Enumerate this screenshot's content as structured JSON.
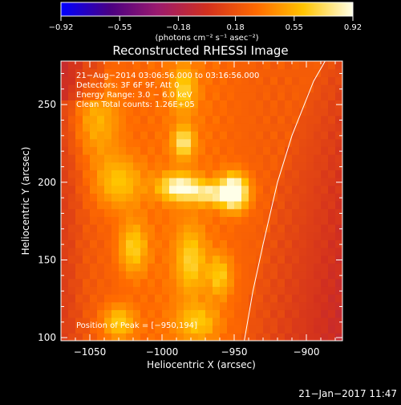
{
  "chart_data": {
    "type": "heatmap",
    "title": "Reconstructed RHESSI Image",
    "xlabel": "Heliocentric X (arcsec)",
    "ylabel": "Heliocentric Y (arcsec)",
    "xlim": [
      -1070,
      -875
    ],
    "ylim": [
      98,
      278
    ],
    "xticks": [
      -1050,
      -1000,
      -950,
      -900
    ],
    "xtick_labels": [
      "−1050",
      "−1000",
      "−950",
      "−900"
    ],
    "yticks": [
      100,
      150,
      200,
      250
    ],
    "ytick_labels": [
      "100",
      "150",
      "200",
      "250"
    ],
    "colorbar": {
      "min": -0.92,
      "max": 0.92,
      "ticks": [
        -0.92,
        -0.55,
        -0.18,
        0.18,
        0.55,
        0.92
      ],
      "tick_labels": [
        "−0.92",
        "−0.55",
        "−0.18",
        "0.18",
        "0.55",
        "0.92"
      ],
      "unit_label": "(photons cm⁻² s⁻¹ asec⁻²)"
    },
    "colormap": [
      "#0000ff",
      "#4b0082",
      "#9a1a6e",
      "#d2301e",
      "#ff6a00",
      "#ffc400",
      "#ffffe8"
    ],
    "info_lines": [
      "21−Aug−2014 03:06:56.000 to 03:16:56.000",
      "Detectors: 3F 6F 9F, Att 0",
      "Energy Range: 3.0 − 6.0 keV",
      "Clean     Total counts: 1.26E+05"
    ],
    "peak_label": "Position of Peak = [−950,194]",
    "peak": [
      -950,
      194
    ],
    "sources": [
      {
        "x": -950,
        "y": 194,
        "amp": 0.95,
        "sx": 7,
        "sy": 8
      },
      {
        "x": -988,
        "y": 197,
        "amp": 0.7,
        "sx": 10,
        "sy": 6
      },
      {
        "x": -967,
        "y": 193,
        "amp": 0.5,
        "sx": 9,
        "sy": 5
      },
      {
        "x": -985,
        "y": 226,
        "amp": 0.55,
        "sx": 5,
        "sy": 7
      },
      {
        "x": -985,
        "y": 260,
        "amp": 0.4,
        "sx": 6,
        "sy": 10
      },
      {
        "x": -1020,
        "y": 158,
        "amp": 0.45,
        "sx": 7,
        "sy": 12
      },
      {
        "x": -1030,
        "y": 110,
        "amp": 0.45,
        "sx": 8,
        "sy": 8
      },
      {
        "x": -980,
        "y": 150,
        "amp": 0.4,
        "sx": 7,
        "sy": 15
      },
      {
        "x": -960,
        "y": 140,
        "amp": 0.4,
        "sx": 6,
        "sy": 10
      },
      {
        "x": -975,
        "y": 110,
        "amp": 0.35,
        "sx": 10,
        "sy": 8
      },
      {
        "x": -1045,
        "y": 240,
        "amp": 0.35,
        "sx": 12,
        "sy": 18
      },
      {
        "x": -1030,
        "y": 200,
        "amp": 0.4,
        "sx": 12,
        "sy": 12
      }
    ],
    "limb": [
      [
        -943,
        98
      ],
      [
        -937,
        130
      ],
      [
        -930,
        160
      ],
      [
        -920,
        200
      ],
      [
        -910,
        230
      ],
      [
        -895,
        265
      ],
      [
        -887,
        278
      ]
    ]
  },
  "footer": {
    "timestamp": "21−Jan−2017 11:47"
  }
}
